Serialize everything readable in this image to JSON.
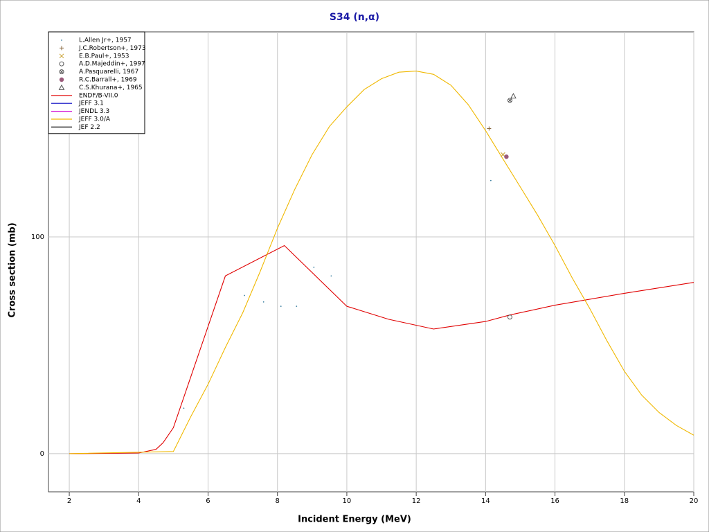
{
  "chart_data": {
    "type": "line",
    "title": "S34 (n,α)",
    "x_label": "Incident Energy (MeV)",
    "y_label": "Cross section (mb)",
    "xlim": [
      1.4,
      20
    ],
    "ylim": [
      -17.6,
      194.6
    ],
    "xticks": [
      2,
      4,
      6,
      8,
      10,
      12,
      14,
      16,
      18,
      20
    ],
    "yticks": [
      0,
      100
    ],
    "grid": true,
    "legend": "upper left",
    "series": [
      {
        "name": "L.Allen Jr+, 1957",
        "kind": "points",
        "marker": "dot",
        "color": "#3a7fa0",
        "x": [
          5.3,
          7.05,
          7.6,
          8.1,
          8.55,
          9.05,
          9.55,
          14.15
        ],
        "values": [
          21,
          73,
          70,
          68,
          68,
          86,
          82,
          126
        ]
      },
      {
        "name": "J.C.Robertson+, 1973",
        "kind": "points",
        "marker": "plus",
        "color": "#8a6a40",
        "x": [
          14.1
        ],
        "values": [
          150
        ]
      },
      {
        "name": "E.B.Paul+, 1953",
        "kind": "points",
        "marker": "x",
        "color": "#c8a030",
        "x": [
          14.5
        ],
        "values": [
          138
        ]
      },
      {
        "name": "A.D.Majeddin+, 1997",
        "kind": "points",
        "marker": "circle",
        "color": "#555",
        "x": [
          14.7
        ],
        "values": [
          63
        ]
      },
      {
        "name": "A.Pasquarelli, 1967",
        "kind": "points",
        "marker": "circle-x",
        "color": "#555",
        "x": [
          14.7
        ],
        "values": [
          163
        ]
      },
      {
        "name": "R.C.Barrall+, 1969",
        "kind": "points",
        "marker": "filled-circle",
        "color": "#9a5a7a",
        "x": [
          14.6
        ],
        "values": [
          137
        ]
      },
      {
        "name": "C.S.Khurana+, 1965",
        "kind": "points",
        "marker": "triangle",
        "color": "#555",
        "x": [
          14.8
        ],
        "values": [
          165
        ]
      },
      {
        "name": "ENDF/B-VII.0",
        "kind": "line",
        "color": "#e00000",
        "x": [
          2,
          4,
          4.5,
          4.7,
          5,
          6.5,
          8.2,
          10,
          11.2,
          12.5,
          14,
          14.7,
          16,
          18,
          20
        ],
        "values": [
          0,
          0.3,
          2,
          5,
          12,
          82,
          96,
          68,
          62,
          57.5,
          61,
          64,
          68.5,
          74,
          79
        ]
      },
      {
        "name": "JEFF 3.1",
        "kind": "line",
        "color": "#0000c0",
        "x": [],
        "values": []
      },
      {
        "name": "JENDL 3.3",
        "kind": "line",
        "color": "#d000d0",
        "x": [],
        "values": []
      },
      {
        "name": "JEFF 3.0/A",
        "kind": "line",
        "color": "#f0b800",
        "x": [
          2,
          5,
          5.5,
          6,
          6.5,
          7,
          7.5,
          8,
          8.5,
          9,
          9.5,
          10,
          10.5,
          11,
          11.5,
          12,
          12.5,
          13,
          13.5,
          14,
          14.5,
          15,
          15.5,
          16,
          16.5,
          17,
          17.5,
          18,
          18.5,
          19,
          19.5,
          20
        ],
        "values": [
          0,
          1,
          17,
          32,
          49,
          65,
          84,
          104,
          122,
          138,
          151,
          160,
          168,
          173,
          176,
          176.5,
          175,
          170,
          161,
          149,
          136,
          123,
          110,
          96,
          81,
          67,
          52,
          38,
          27,
          19,
          13,
          8.5
        ]
      },
      {
        "name": "JEF 2.2",
        "kind": "line",
        "color": "#000000",
        "x": [],
        "values": []
      }
    ]
  }
}
